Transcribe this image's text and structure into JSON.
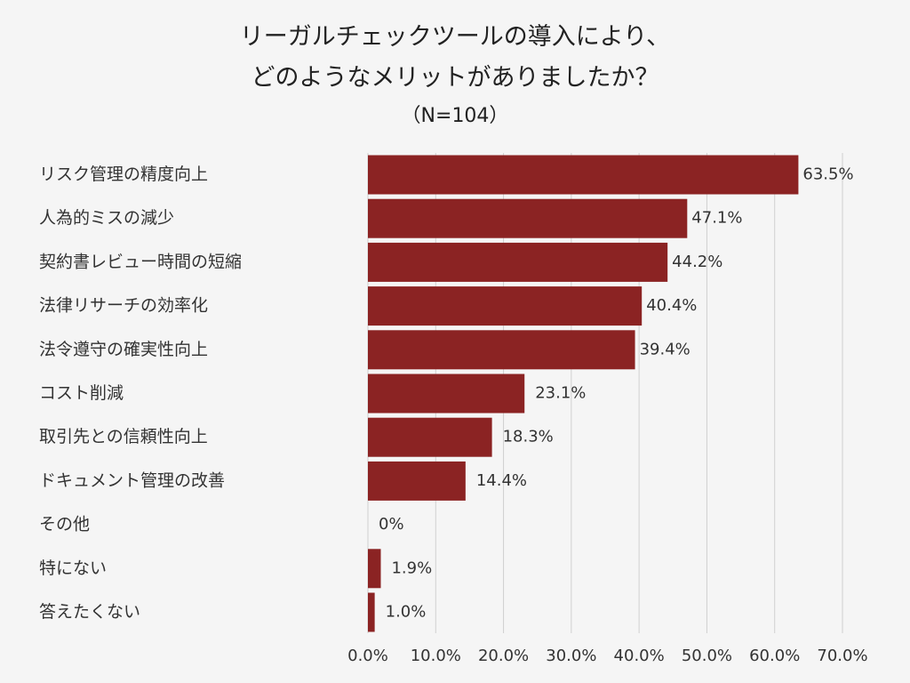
{
  "title": {
    "line1": "リーガルチェックツールの導入により、",
    "line2": "どのようなメリットがありましたか？",
    "line3": "（N=104）"
  },
  "chart_data": {
    "type": "bar",
    "orientation": "horizontal",
    "categories": [
      "リスク管理の精度向上",
      "人為的ミスの減少",
      "契約書レビュー時間の短縮",
      "法律リサーチの効率化",
      "法令遵守の確実性向上",
      "コスト削減",
      "取引先との信頼性向上",
      "ドキュメント管理の改善",
      "その他",
      "特にない",
      "答えたくない"
    ],
    "values": [
      63.5,
      47.1,
      44.2,
      40.4,
      39.4,
      23.1,
      18.3,
      14.4,
      0,
      1.9,
      1.0
    ],
    "value_labels": [
      "63.5%",
      "47.1%",
      "44.2%",
      "40.4%",
      "39.4%",
      "23.1%",
      "18.3%",
      "14.4%",
      "0%",
      "1.9%",
      "1.0%"
    ],
    "xlim": [
      0,
      70
    ],
    "ticks": [
      0,
      10,
      20,
      30,
      40,
      50,
      60,
      70
    ],
    "tick_labels": [
      "0.0%",
      "10.0%",
      "20.0%",
      "30.0%",
      "40.0%",
      "50.0%",
      "60.0%",
      "70.0%"
    ],
    "grid": "vertical",
    "colors": {
      "bar": "#8b2323",
      "grid": "#d0d0d0",
      "background": "#f5f5f5"
    }
  }
}
